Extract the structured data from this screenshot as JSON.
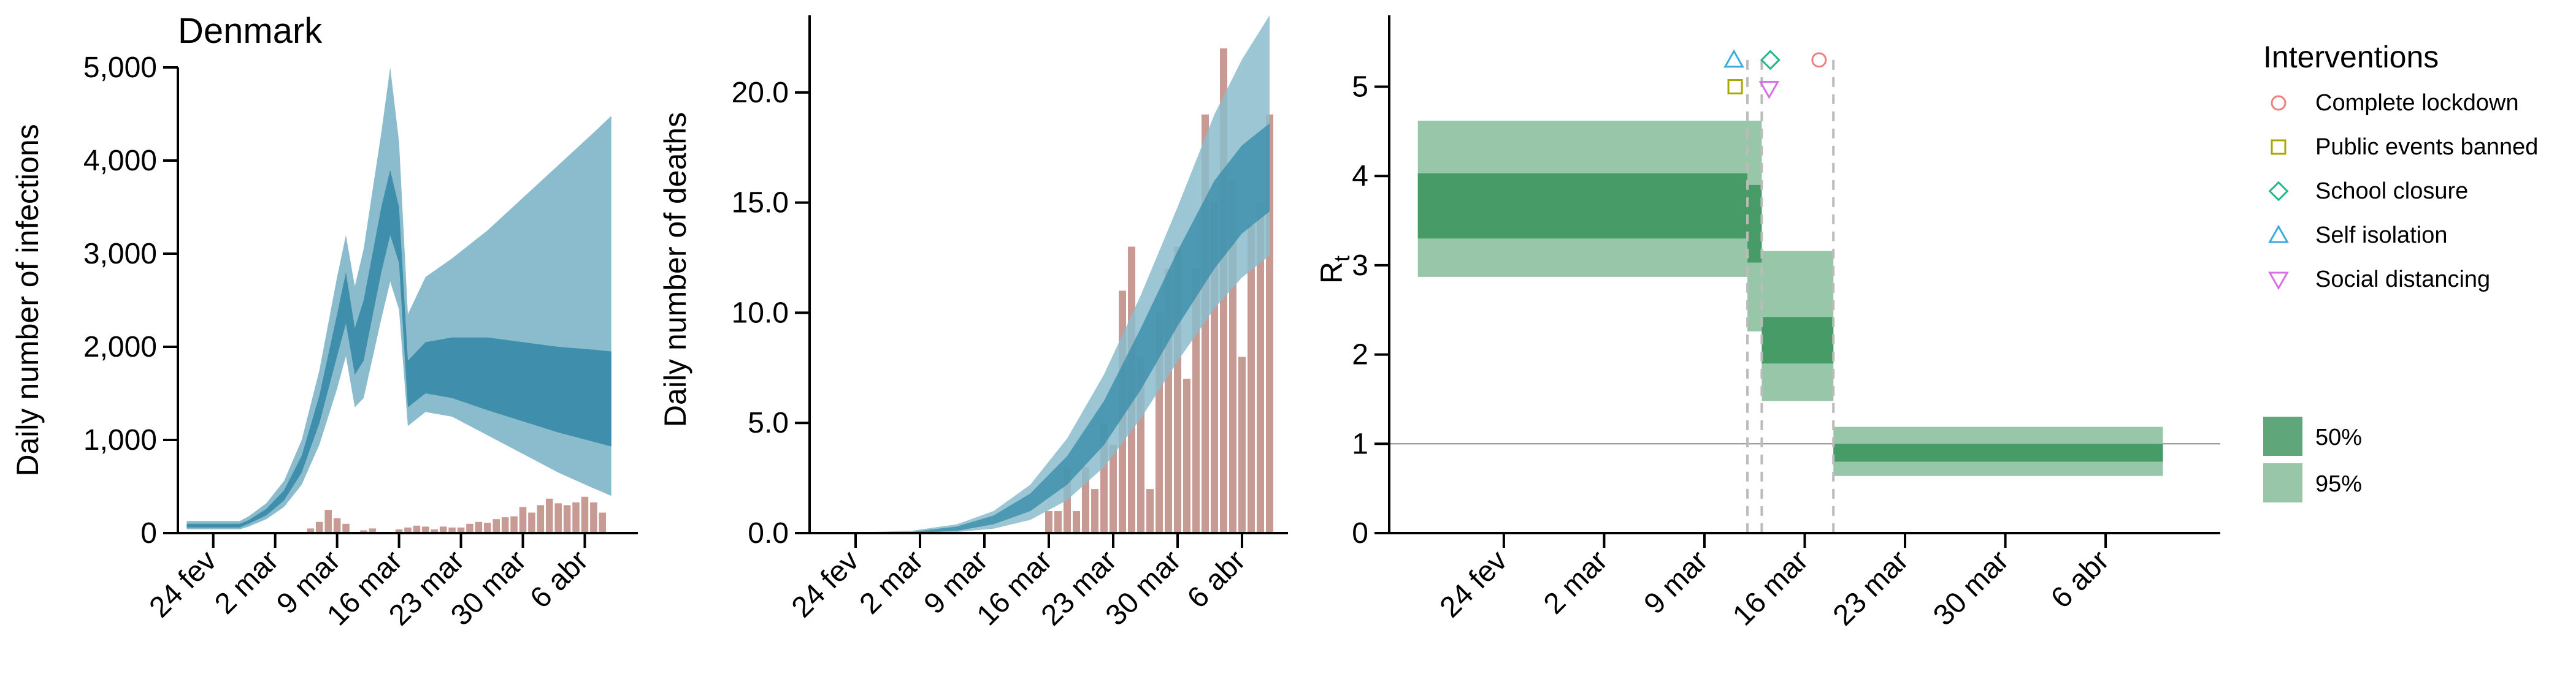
{
  "chart_data": [
    {
      "type": "area",
      "panel": "infections",
      "title": "Denmark",
      "xlabel": "",
      "ylabel": "Daily number of infections",
      "xlim": [
        "2020-02-20",
        "2020-04-12"
      ],
      "ylim": [
        0,
        5000
      ],
      "x_ticks": [
        {
          "date": "2020-02-24",
          "label": "24 fev"
        },
        {
          "date": "2020-03-02",
          "label": "2 mar"
        },
        {
          "date": "2020-03-09",
          "label": "9 mar"
        },
        {
          "date": "2020-03-16",
          "label": "16 mar"
        },
        {
          "date": "2020-03-23",
          "label": "23 mar"
        },
        {
          "date": "2020-03-30",
          "label": "30 mar"
        },
        {
          "date": "2020-04-06",
          "label": "6 abr"
        }
      ],
      "y_ticks": [
        {
          "value": 0,
          "label": "0"
        },
        {
          "value": 1000,
          "label": "1,000"
        },
        {
          "value": 2000,
          "label": "2,000"
        },
        {
          "value": 3000,
          "label": "3,000"
        },
        {
          "value": 4000,
          "label": "4,000"
        },
        {
          "value": 5000,
          "label": "5,000"
        }
      ],
      "colors": {
        "band95": "#8bbccd",
        "band50": "#3f8fac",
        "bars": "#c4968e"
      },
      "bands": [
        {
          "date": "2020-02-21",
          "lo95": 40,
          "hi95": 130,
          "lo50": 60,
          "hi50": 100
        },
        {
          "date": "2020-02-24",
          "lo95": 40,
          "hi95": 130,
          "lo50": 60,
          "hi50": 100
        },
        {
          "date": "2020-02-27",
          "lo95": 40,
          "hi95": 130,
          "lo50": 60,
          "hi50": 100
        },
        {
          "date": "2020-02-28",
          "lo95": 70,
          "hi95": 180,
          "lo50": 100,
          "hi50": 140
        },
        {
          "date": "2020-03-01",
          "lo95": 150,
          "hi95": 320,
          "lo50": 190,
          "hi50": 260
        },
        {
          "date": "2020-03-03",
          "lo95": 280,
          "hi95": 560,
          "lo50": 350,
          "hi50": 460
        },
        {
          "date": "2020-03-05",
          "lo95": 520,
          "hi95": 1000,
          "lo50": 650,
          "hi50": 830
        },
        {
          "date": "2020-03-07",
          "lo95": 950,
          "hi95": 1750,
          "lo50": 1180,
          "hi50": 1480
        },
        {
          "date": "2020-03-09",
          "lo95": 1550,
          "hi95": 2750,
          "lo50": 1900,
          "hi50": 2350
        },
        {
          "date": "2020-03-10",
          "lo95": 1900,
          "hi95": 3200,
          "lo50": 2250,
          "hi50": 2800
        },
        {
          "date": "2020-03-11",
          "lo95": 1350,
          "hi95": 2650,
          "lo50": 1700,
          "hi50": 2200
        },
        {
          "date": "2020-03-12",
          "lo95": 1450,
          "hi95": 3050,
          "lo50": 1850,
          "hi50": 2500
        },
        {
          "date": "2020-03-14",
          "lo95": 2300,
          "hi95": 4300,
          "lo50": 2800,
          "hi50": 3500
        },
        {
          "date": "2020-03-15",
          "lo95": 2700,
          "hi95": 5000,
          "lo50": 3200,
          "hi50": 3900
        },
        {
          "date": "2020-03-16",
          "lo95": 2400,
          "hi95": 4200,
          "lo50": 2900,
          "hi50": 3500
        },
        {
          "date": "2020-03-17",
          "lo95": 1150,
          "hi95": 2350,
          "lo50": 1350,
          "hi50": 1850
        },
        {
          "date": "2020-03-19",
          "lo95": 1300,
          "hi95": 2750,
          "lo50": 1500,
          "hi50": 2050
        },
        {
          "date": "2020-03-22",
          "lo95": 1250,
          "hi95": 2950,
          "lo50": 1450,
          "hi50": 2100
        },
        {
          "date": "2020-03-26",
          "lo95": 1050,
          "hi95": 3250,
          "lo50": 1320,
          "hi50": 2100
        },
        {
          "date": "2020-03-30",
          "lo95": 850,
          "hi95": 3600,
          "lo50": 1200,
          "hi50": 2050
        },
        {
          "date": "2020-04-03",
          "lo95": 650,
          "hi95": 3950,
          "lo50": 1080,
          "hi50": 2000
        },
        {
          "date": "2020-04-07",
          "lo95": 480,
          "hi95": 4300,
          "lo50": 980,
          "hi50": 1970
        },
        {
          "date": "2020-04-09",
          "lo95": 400,
          "hi95": 4480,
          "lo50": 930,
          "hi50": 1950
        }
      ],
      "bars": [
        {
          "date": "2020-03-06",
          "value": 50
        },
        {
          "date": "2020-03-07",
          "value": 120
        },
        {
          "date": "2020-03-08",
          "value": 250
        },
        {
          "date": "2020-03-09",
          "value": 160
        },
        {
          "date": "2020-03-10",
          "value": 100
        },
        {
          "date": "2020-03-12",
          "value": 30
        },
        {
          "date": "2020-03-13",
          "value": 50
        },
        {
          "date": "2020-03-16",
          "value": 40
        },
        {
          "date": "2020-03-17",
          "value": 60
        },
        {
          "date": "2020-03-18",
          "value": 80
        },
        {
          "date": "2020-03-19",
          "value": 70
        },
        {
          "date": "2020-03-20",
          "value": 40
        },
        {
          "date": "2020-03-21",
          "value": 70
        },
        {
          "date": "2020-03-22",
          "value": 60
        },
        {
          "date": "2020-03-23",
          "value": 60
        },
        {
          "date": "2020-03-24",
          "value": 100
        },
        {
          "date": "2020-03-25",
          "value": 120
        },
        {
          "date": "2020-03-26",
          "value": 110
        },
        {
          "date": "2020-03-27",
          "value": 150
        },
        {
          "date": "2020-03-28",
          "value": 170
        },
        {
          "date": "2020-03-29",
          "value": 180
        },
        {
          "date": "2020-03-30",
          "value": 280
        },
        {
          "date": "2020-03-31",
          "value": 220
        },
        {
          "date": "2020-04-01",
          "value": 300
        },
        {
          "date": "2020-04-02",
          "value": 370
        },
        {
          "date": "2020-04-03",
          "value": 320
        },
        {
          "date": "2020-04-04",
          "value": 300
        },
        {
          "date": "2020-04-05",
          "value": 330
        },
        {
          "date": "2020-04-06",
          "value": 390
        },
        {
          "date": "2020-04-07",
          "value": 330
        },
        {
          "date": "2020-04-08",
          "value": 220
        }
      ]
    },
    {
      "type": "area",
      "panel": "deaths",
      "title": "",
      "xlabel": "",
      "ylabel": "Daily number of deaths",
      "xlim": [
        "2020-02-19",
        "2020-04-11"
      ],
      "ylim": [
        0,
        23.5
      ],
      "x_ticks": [
        {
          "date": "2020-02-24",
          "label": "24 fev"
        },
        {
          "date": "2020-03-02",
          "label": "2 mar"
        },
        {
          "date": "2020-03-09",
          "label": "9 mar"
        },
        {
          "date": "2020-03-16",
          "label": "16 mar"
        },
        {
          "date": "2020-03-23",
          "label": "23 mar"
        },
        {
          "date": "2020-03-30",
          "label": "30 mar"
        },
        {
          "date": "2020-04-06",
          "label": "6 abr"
        }
      ],
      "y_ticks": [
        {
          "value": 0,
          "label": "0.0"
        },
        {
          "value": 5,
          "label": "5.0"
        },
        {
          "value": 10,
          "label": "10.0"
        },
        {
          "value": 15,
          "label": "15.0"
        },
        {
          "value": 20,
          "label": "20.0"
        }
      ],
      "colors": {
        "band95": "#8bbccd",
        "band50": "#3f8fac",
        "bars": "#c4968e"
      },
      "bands": [
        {
          "date": "2020-02-21",
          "lo95": 0,
          "hi95": 0,
          "lo50": 0,
          "hi50": 0
        },
        {
          "date": "2020-03-01",
          "lo95": 0,
          "hi95": 0.1,
          "lo50": 0,
          "hi50": 0.05
        },
        {
          "date": "2020-03-06",
          "lo95": 0.05,
          "hi95": 0.4,
          "lo50": 0.1,
          "hi50": 0.3
        },
        {
          "date": "2020-03-10",
          "lo95": 0.2,
          "hi95": 1.0,
          "lo50": 0.4,
          "hi50": 0.8
        },
        {
          "date": "2020-03-14",
          "lo95": 0.6,
          "hi95": 2.2,
          "lo50": 1.0,
          "hi50": 1.8
        },
        {
          "date": "2020-03-18",
          "lo95": 1.5,
          "hi95": 4.3,
          "lo50": 2.2,
          "hi50": 3.5
        },
        {
          "date": "2020-03-22",
          "lo95": 3.0,
          "hi95": 7.2,
          "lo50": 4.0,
          "hi50": 6.0
        },
        {
          "date": "2020-03-26",
          "lo95": 5.2,
          "hi95": 10.8,
          "lo50": 6.5,
          "hi50": 9.3
        },
        {
          "date": "2020-03-30",
          "lo95": 7.8,
          "hi95": 14.8,
          "lo50": 9.4,
          "hi50": 12.8
        },
        {
          "date": "2020-04-03",
          "lo95": 10.2,
          "hi95": 19.0,
          "lo50": 12.0,
          "hi50": 16.0
        },
        {
          "date": "2020-04-06",
          "lo95": 11.6,
          "hi95": 21.5,
          "lo50": 13.6,
          "hi50": 17.6
        },
        {
          "date": "2020-04-09",
          "lo95": 12.6,
          "hi95": 23.5,
          "lo50": 14.6,
          "hi50": 18.6
        }
      ],
      "bars": [
        {
          "date": "2020-03-16",
          "value": 1
        },
        {
          "date": "2020-03-17",
          "value": 1
        },
        {
          "date": "2020-03-18",
          "value": 3
        },
        {
          "date": "2020-03-19",
          "value": 1
        },
        {
          "date": "2020-03-20",
          "value": 3
        },
        {
          "date": "2020-03-21",
          "value": 2
        },
        {
          "date": "2020-03-22",
          "value": 5
        },
        {
          "date": "2020-03-23",
          "value": 4
        },
        {
          "date": "2020-03-24",
          "value": 11
        },
        {
          "date": "2020-03-25",
          "value": 13
        },
        {
          "date": "2020-03-26",
          "value": 8
        },
        {
          "date": "2020-03-27",
          "value": 2
        },
        {
          "date": "2020-03-28",
          "value": 10
        },
        {
          "date": "2020-03-29",
          "value": 12
        },
        {
          "date": "2020-03-30",
          "value": 13
        },
        {
          "date": "2020-03-31",
          "value": 7
        },
        {
          "date": "2020-04-01",
          "value": 12
        },
        {
          "date": "2020-04-02",
          "value": 19
        },
        {
          "date": "2020-04-03",
          "value": 15
        },
        {
          "date": "2020-04-04",
          "value": 22
        },
        {
          "date": "2020-04-05",
          "value": 16
        },
        {
          "date": "2020-04-06",
          "value": 8
        },
        {
          "date": "2020-04-07",
          "value": 14
        },
        {
          "date": "2020-04-08",
          "value": 15
        },
        {
          "date": "2020-04-09",
          "value": 19
        }
      ]
    },
    {
      "type": "area",
      "panel": "rt",
      "title": "",
      "xlabel": "",
      "ylabel": "Rt",
      "ylabel_main": "R",
      "ylabel_sub": "t",
      "xlim": [
        "2020-02-16",
        "2020-04-14"
      ],
      "ylim": [
        0,
        5.8
      ],
      "x_ticks": [
        {
          "date": "2020-02-24",
          "label": "24 fev"
        },
        {
          "date": "2020-03-02",
          "label": "2 mar"
        },
        {
          "date": "2020-03-09",
          "label": "9 mar"
        },
        {
          "date": "2020-03-16",
          "label": "16 mar"
        },
        {
          "date": "2020-03-23",
          "label": "23 mar"
        },
        {
          "date": "2020-03-30",
          "label": "30 mar"
        },
        {
          "date": "2020-04-06",
          "label": "6 abr"
        }
      ],
      "y_ticks": [
        {
          "value": 0,
          "label": "0"
        },
        {
          "value": 1,
          "label": "1"
        },
        {
          "value": 2,
          "label": "2"
        },
        {
          "value": 3,
          "label": "3"
        },
        {
          "value": 4,
          "label": "4"
        },
        {
          "value": 5,
          "label": "5"
        }
      ],
      "reference_line": 1,
      "colors": {
        "band95": "#97c6a9",
        "band50": "#479b67",
        "reference": "#888888",
        "vline": "#bbbbbb"
      },
      "steps": [
        {
          "start": "2020-02-18",
          "end": "2020-03-12",
          "lo95": 2.87,
          "hi95": 4.62,
          "lo50": 3.3,
          "hi50": 4.03
        },
        {
          "start": "2020-03-12",
          "end": "2020-03-13",
          "lo95": 2.26,
          "hi95": 4.62,
          "lo50": 3.03,
          "hi50": 3.9
        },
        {
          "start": "2020-03-13",
          "end": "2020-03-18",
          "lo95": 1.48,
          "hi95": 3.16,
          "lo50": 1.9,
          "hi50": 2.42
        },
        {
          "start": "2020-03-18",
          "end": "2020-04-10",
          "lo95": 0.64,
          "hi95": 1.19,
          "lo50": 0.8,
          "hi50": 1.0
        }
      ],
      "interventions": [
        {
          "date": "2020-03-17",
          "label": "Complete lockdown",
          "marker": "circle",
          "color": "#f08080",
          "y": 5.3
        },
        {
          "date": "2020-03-12",
          "label": "Public events banned",
          "marker": "square",
          "color": "#a8a800",
          "y": 5.0
        },
        {
          "date": "2020-03-13",
          "label": "School closure",
          "marker": "diamond",
          "color": "#1fb98a",
          "y": 5.3
        },
        {
          "date": "2020-03-12",
          "label": "Self isolation",
          "marker": "triangle-up",
          "color": "#3aaee0",
          "y": 5.3
        },
        {
          "date": "2020-03-13",
          "label": "Social distancing",
          "marker": "triangle-down",
          "color": "#d970e6",
          "y": 4.98
        }
      ],
      "vlines": [
        "2020-03-12",
        "2020-03-13",
        "2020-03-18"
      ]
    }
  ],
  "legend": {
    "interventions_title": "Interventions",
    "intervals": [
      {
        "label": "50%",
        "color": "#5fa77b"
      },
      {
        "label": "95%",
        "color": "#97c6a9"
      }
    ]
  }
}
